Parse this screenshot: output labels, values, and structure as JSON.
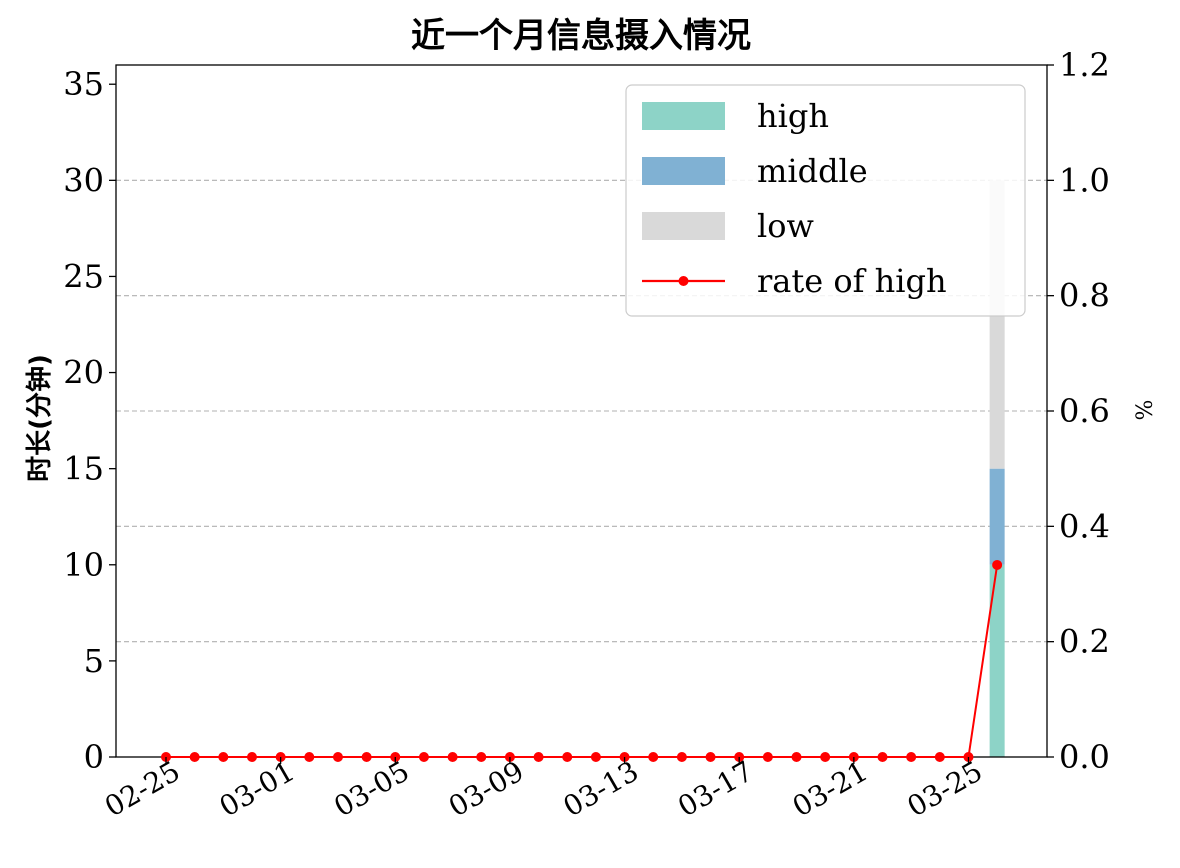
{
  "chart_data": {
    "type": "bar",
    "title": "近一个月信息摄入情况",
    "ylabel": "时长(分钟)",
    "y2label": "%",
    "ylim": [
      0,
      36
    ],
    "y2lim": [
      0,
      1.2
    ],
    "yticks": [
      "0",
      "5",
      "10",
      "15",
      "20",
      "25",
      "30",
      "35"
    ],
    "y2ticks": [
      "0.0",
      "0.2",
      "0.4",
      "0.6",
      "0.8",
      "1.0",
      "1.2"
    ],
    "xtick_labels": [
      "02-25",
      "03-01",
      "03-05",
      "03-09",
      "03-13",
      "03-17",
      "03-21",
      "03-25"
    ],
    "dates": [
      "02-25",
      "02-26",
      "02-27",
      "02-28",
      "03-01",
      "03-02",
      "03-03",
      "03-04",
      "03-05",
      "03-06",
      "03-07",
      "03-08",
      "03-09",
      "03-10",
      "03-11",
      "03-12",
      "03-13",
      "03-14",
      "03-15",
      "03-16",
      "03-17",
      "03-18",
      "03-19",
      "03-20",
      "03-21",
      "03-22",
      "03-23",
      "03-24",
      "03-25",
      "03-26"
    ],
    "series": [
      {
        "name": "high",
        "kind": "stacked-bar",
        "color": "#8dd3c7",
        "values": [
          0,
          0,
          0,
          0,
          0,
          0,
          0,
          0,
          0,
          0,
          0,
          0,
          0,
          0,
          0,
          0,
          0,
          0,
          0,
          0,
          0,
          0,
          0,
          0,
          0,
          0,
          0,
          0,
          0,
          10
        ]
      },
      {
        "name": "middle",
        "kind": "stacked-bar",
        "color": "#80b1d3",
        "values": [
          0,
          0,
          0,
          0,
          0,
          0,
          0,
          0,
          0,
          0,
          0,
          0,
          0,
          0,
          0,
          0,
          0,
          0,
          0,
          0,
          0,
          0,
          0,
          0,
          0,
          0,
          0,
          0,
          0,
          5
        ]
      },
      {
        "name": "low",
        "kind": "stacked-bar",
        "color": "#d9d9d9",
        "values": [
          0,
          0,
          0,
          0,
          0,
          0,
          0,
          0,
          0,
          0,
          0,
          0,
          0,
          0,
          0,
          0,
          0,
          0,
          0,
          0,
          0,
          0,
          0,
          0,
          0,
          0,
          0,
          0,
          0,
          15
        ]
      },
      {
        "name": "rate of high",
        "kind": "line",
        "axis": "right",
        "color": "#ff0000",
        "values": [
          0,
          0,
          0,
          0,
          0,
          0,
          0,
          0,
          0,
          0,
          0,
          0,
          0,
          0,
          0,
          0,
          0,
          0,
          0,
          0,
          0,
          0,
          0,
          0,
          0,
          0,
          0,
          0,
          0,
          0.333
        ]
      }
    ],
    "grid": "horizontal-dashed",
    "legend_position": "top-right"
  }
}
